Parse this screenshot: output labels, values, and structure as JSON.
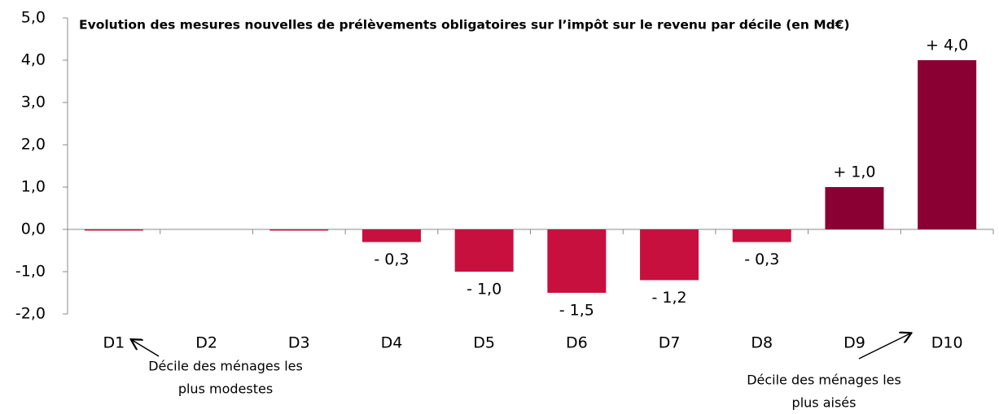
{
  "chart_data": {
    "type": "bar",
    "title": "Evolution des mesures nouvelles de prélèvements obligatoires sur l’impôt sur le revenu par décile (en Md€)",
    "categories": [
      "D1",
      "D2",
      "D3",
      "D4",
      "D5",
      "D6",
      "D7",
      "D8",
      "D9",
      "D10"
    ],
    "values": [
      -0.02,
      0,
      -0.01,
      -0.3,
      -1.0,
      -1.5,
      -1.2,
      -0.3,
      1.0,
      4.0
    ],
    "value_labels": [
      null,
      null,
      null,
      "- 0,3",
      "- 1,0",
      "- 1,5",
      "- 1,2",
      "- 0,3",
      "+ 1,0",
      "+ 4,0"
    ],
    "colors": [
      "#c8103f",
      "#c8103f",
      "#c8103f",
      "#c8103f",
      "#c8103f",
      "#c8103f",
      "#c8103f",
      "#c8103f",
      "#8b0033",
      "#8b0033"
    ],
    "ylim": [
      -2,
      5
    ],
    "yticks": [
      {
        "value": -2,
        "label": "-2,0"
      },
      {
        "value": -1,
        "label": "-1,0"
      },
      {
        "value": 0,
        "label": "0,0"
      },
      {
        "value": 1,
        "label": "1,0"
      },
      {
        "value": 2,
        "label": "2,0"
      },
      {
        "value": 3,
        "label": "3,0"
      },
      {
        "value": 4,
        "label": "4,0"
      },
      {
        "value": 5,
        "label": "5,0"
      }
    ],
    "annotations": [
      [
        "Décile des ménages les",
        "plus modestes"
      ],
      [
        "Décile des ménages les",
        "plus aisés"
      ]
    ]
  }
}
